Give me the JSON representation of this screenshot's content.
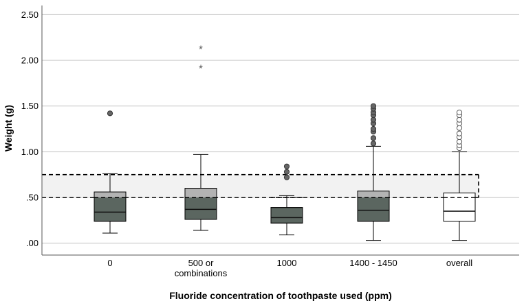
{
  "chart_data": {
    "type": "box",
    "xlabel": "Fluoride concentration of toothpaste used (ppm)",
    "ylabel": "Weight (g)",
    "ylim": [
      -0.13,
      2.6
    ],
    "yticks": [
      {
        "value": 0.0,
        "label": ".00"
      },
      {
        "value": 0.5,
        "label": ".50"
      },
      {
        "value": 1.0,
        "label": "1.00"
      },
      {
        "value": 1.5,
        "label": "1.50"
      },
      {
        "value": 2.0,
        "label": "2.00"
      },
      {
        "value": 2.5,
        "label": "2.50"
      }
    ],
    "grid": "horizontal",
    "reference_band": {
      "y1": 0.5,
      "y2": 0.75,
      "style": "dashed",
      "fill": "#f2f2f2"
    },
    "colors": {
      "fill_main": "#5b6660",
      "fill_light": "#b3b3b3",
      "fill_overall": "#ffffff",
      "outlier_fill": "#666666",
      "gridline": "#bfbfbf"
    },
    "categories": [
      {
        "label": [
          "0"
        ],
        "whisker_low": 0.11,
        "q1": 0.24,
        "median": 0.34,
        "q3": 0.56,
        "whisker_high": 0.76,
        "outliers": [
          1.42
        ],
        "extremes": []
      },
      {
        "label": [
          "500 or",
          "combinations"
        ],
        "whisker_low": 0.14,
        "q1": 0.26,
        "median": 0.37,
        "q3": 0.6,
        "whisker_high": 0.97,
        "outliers": [],
        "extremes": [
          1.92,
          2.13
        ]
      },
      {
        "label": [
          "1000"
        ],
        "whisker_low": 0.09,
        "q1": 0.22,
        "median": 0.28,
        "q3": 0.39,
        "whisker_high": 0.52,
        "outliers": [
          0.72,
          0.78,
          0.84
        ],
        "extremes": []
      },
      {
        "label": [
          "1400 - 1450"
        ],
        "whisker_low": 0.03,
        "q1": 0.24,
        "median": 0.36,
        "q3": 0.57,
        "whisker_high": 1.06,
        "outliers": [
          1.09,
          1.15,
          1.22,
          1.25,
          1.31,
          1.35,
          1.4,
          1.43,
          1.47,
          1.5
        ],
        "extremes": []
      },
      {
        "label": [
          "overall"
        ],
        "whisker_low": 0.03,
        "q1": 0.24,
        "median": 0.35,
        "q3": 0.55,
        "whisker_high": 1.0,
        "outliers": [
          1.04,
          1.07,
          1.11,
          1.16,
          1.2,
          1.26,
          1.31,
          1.35,
          1.4,
          1.43
        ],
        "extremes": []
      }
    ]
  }
}
